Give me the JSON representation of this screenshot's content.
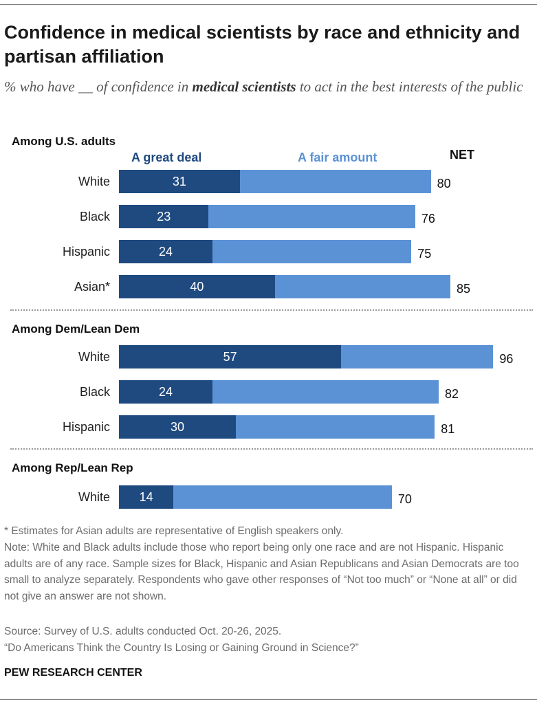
{
  "title": "Confidence in medical scientists by race and ethnicity and partisan affiliation",
  "subtitle_pre": "% who have __ of confidence in ",
  "subtitle_bold": "medical scientists",
  "subtitle_post": " to act in the best interests of the public",
  "legend": {
    "great_deal": "A great deal",
    "fair_amount": "A fair amount",
    "net": "NET"
  },
  "colors": {
    "great_deal": "#1f4a80",
    "fair_amount": "#5b92d6"
  },
  "sections": [
    {
      "label": "Among U.S. adults",
      "rows": [
        {
          "label": "White",
          "great_deal": 31,
          "net": 80
        },
        {
          "label": "Black",
          "great_deal": 23,
          "net": 76
        },
        {
          "label": "Hispanic",
          "great_deal": 24,
          "net": 75
        },
        {
          "label": "Asian*",
          "great_deal": 40,
          "net": 85
        }
      ]
    },
    {
      "label": "Among Dem/Lean Dem",
      "rows": [
        {
          "label": "White",
          "great_deal": 57,
          "net": 96
        },
        {
          "label": "Black",
          "great_deal": 24,
          "net": 82
        },
        {
          "label": "Hispanic",
          "great_deal": 30,
          "net": 81
        }
      ]
    },
    {
      "label": "Among Rep/Lean Rep",
      "rows": [
        {
          "label": "White",
          "great_deal": 14,
          "net": 70
        }
      ]
    }
  ],
  "chart_data": {
    "type": "bar",
    "orientation": "horizontal",
    "stacked": true,
    "categories": [
      "Among U.S. adults: White",
      "Among U.S. adults: Black",
      "Among U.S. adults: Hispanic",
      "Among U.S. adults: Asian*",
      "Among Dem/Lean Dem: White",
      "Among Dem/Lean Dem: Black",
      "Among Dem/Lean Dem: Hispanic",
      "Among Rep/Lean Rep: White"
    ],
    "series": [
      {
        "name": "A great deal",
        "values": [
          31,
          23,
          24,
          40,
          57,
          24,
          30,
          14
        ]
      },
      {
        "name": "A fair amount",
        "values": [
          49,
          53,
          51,
          45,
          39,
          58,
          51,
          56
        ]
      }
    ],
    "net": [
      80,
      76,
      75,
      85,
      96,
      82,
      81,
      70
    ],
    "xlim": [
      0,
      100
    ]
  },
  "notes": [
    "* Estimates for Asian adults are representative of English speakers only.",
    "Note: White and Black adults include those who report being only one race and are not Hispanic. Hispanic adults are of any race. Sample sizes for Black, Hispanic and Asian Republicans and Asian Democrats are too small to analyze separately. Respondents who gave other responses of “Not too much” or “None at all” or did not give an answer are not shown.",
    "Source: Survey of U.S. adults conducted Oct. 20-26, 2025.",
    "“Do Americans Think the Country Is Losing or Gaining Ground in Science?”"
  ],
  "brand": "PEW RESEARCH CENTER"
}
